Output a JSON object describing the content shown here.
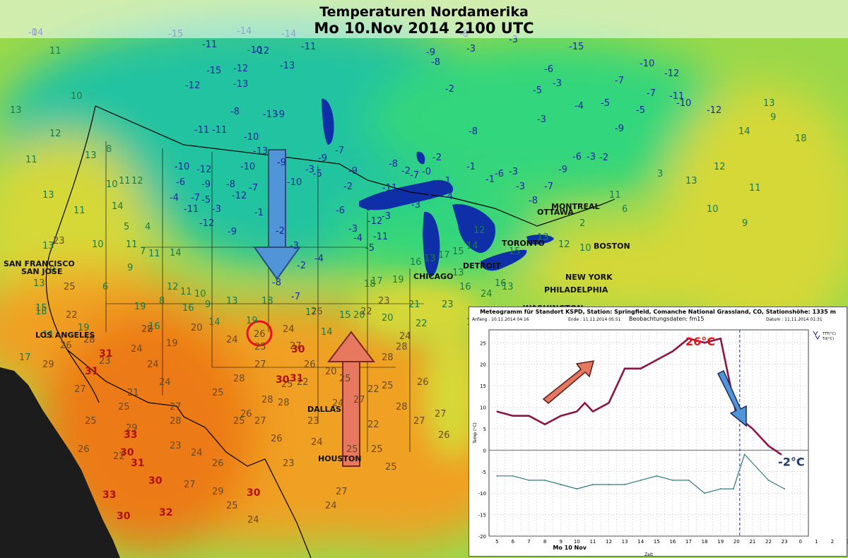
{
  "title": {
    "line1": "Temperaturen Nordamerika",
    "line2": "Mo 10.Nov 2014 2100 UTC"
  },
  "colors": {
    "cold_dark": "#22c3a0",
    "cold_mid": "#33d67c",
    "mild": "#9ad84a",
    "cool_yellow": "#d6d838",
    "warm": "#f0a020",
    "hot": "#ec7a18",
    "ocean": "#1c1c1c",
    "lake": "#0f2fa8",
    "arrow_cold": "#4f95d8",
    "arrow_warm": "#e67860",
    "series_temp": "#8b1444",
    "series_dew": "#2e7d7d"
  },
  "cities": [
    {
      "id": "san-francisco",
      "label": "SAN FRANCISCO"
    },
    {
      "id": "san-jose",
      "label": "SAN JOSE"
    },
    {
      "id": "los-angeles",
      "label": "LOS ANGELES"
    },
    {
      "id": "chicago",
      "label": "CHICAGO"
    },
    {
      "id": "detroit",
      "label": "DETROIT"
    },
    {
      "id": "toronto",
      "label": "TORONTO"
    },
    {
      "id": "montreal",
      "label": "MONTREAL"
    },
    {
      "id": "ottawa",
      "label": "OTTAWA"
    },
    {
      "id": "boston",
      "label": "BOSTON"
    },
    {
      "id": "new-york",
      "label": "NEW YORK"
    },
    {
      "id": "philadelphia",
      "label": "PHILADELPHIA"
    },
    {
      "id": "washington",
      "label": "WASHINGTON"
    },
    {
      "id": "dallas",
      "label": "DALLAS"
    },
    {
      "id": "houston",
      "label": "HOUSTON"
    }
  ],
  "temps_blue": [
    "-14",
    "-15",
    "-14",
    "-14",
    "-12",
    "-13",
    "-11",
    "-15",
    "-12",
    "-13",
    "-10",
    "-11",
    "-12",
    "-13",
    "-8",
    "-9",
    "-10",
    "-13",
    "-11",
    "-11",
    "-12",
    "-11",
    "-12",
    "-9",
    "-10",
    "-12",
    "-7",
    "-8",
    "-9",
    "-10",
    "-6",
    "-4",
    "-7",
    "-5",
    "-3",
    "-1",
    "-2",
    "-3",
    "-2",
    "-4",
    "-7",
    "-8",
    "-9",
    "-10",
    "-5",
    "-9",
    "-7",
    "-3",
    "-9",
    "-6",
    "-2",
    "-5",
    "-8",
    "-11",
    "-12",
    "-11",
    "-3",
    "-4",
    "-5",
    "-3",
    "-2",
    "-0",
    "-2",
    "-3",
    "-1",
    "-7",
    "-5",
    "-3",
    "-4",
    "-1",
    "-1",
    "-3",
    "-8",
    "-7",
    "-9",
    "-6",
    "-3",
    "-2",
    "-3",
    "-6",
    "-8",
    "-5",
    "-3",
    "-3",
    "-4",
    "-5",
    "-7",
    "-10",
    "-12",
    "-11",
    "-5",
    "-9",
    "-7",
    "-10",
    "-12",
    "-15",
    "-6",
    "-3",
    "-3",
    "-8",
    "-9",
    "-8",
    "-2",
    "-0",
    "-1"
  ],
  "temps_green": [
    "11",
    "13",
    "10",
    "8",
    "13",
    "12",
    "11",
    "13",
    "10",
    "11",
    "12",
    "14",
    "11",
    "10",
    "11",
    "13",
    "9",
    "9",
    "7",
    "6",
    "8",
    "14",
    "11",
    "12",
    "11",
    "10",
    "9",
    "4",
    "5",
    "13",
    "11",
    "17",
    "18",
    "19",
    "15",
    "19",
    "16",
    "14",
    "13",
    "16",
    "17",
    "18",
    "19",
    "14",
    "17",
    "15",
    "18",
    "20",
    "19",
    "20",
    "22",
    "21",
    "17",
    "23",
    "24",
    "16",
    "16",
    "13",
    "17",
    "15",
    "14",
    "16",
    "13",
    "13",
    "12",
    "15",
    "13",
    "12",
    "10",
    "11",
    "6",
    "2",
    "3",
    "13",
    "12",
    "14",
    "13",
    "9",
    "18",
    "11",
    "10",
    "9"
  ],
  "temps_orange": [
    "22",
    "20",
    "19",
    "23",
    "25",
    "22",
    "26",
    "28",
    "29",
    "27",
    "24",
    "24",
    "24",
    "23",
    "21",
    "25",
    "29",
    "28",
    "27",
    "25",
    "26",
    "22",
    "23",
    "24",
    "26",
    "27",
    "29",
    "25",
    "24",
    "28",
    "27",
    "25",
    "28",
    "28",
    "26",
    "25",
    "25",
    "27",
    "26",
    "23",
    "24",
    "22",
    "25",
    "27",
    "24",
    "25",
    "22",
    "25",
    "28",
    "27",
    "26",
    "27",
    "26",
    "24",
    "23",
    "22",
    "25",
    "25",
    "24",
    "25",
    "27",
    "24",
    "20",
    "23",
    "22",
    "26",
    "27",
    "28",
    "28",
    "24",
    "26",
    "28"
  ],
  "temps_red": [
    "31",
    "31",
    "33",
    "30",
    "31",
    "33",
    "30",
    "32",
    "30",
    "30",
    "31",
    "30",
    "30"
  ],
  "highlight_value": "26",
  "meteogram": {
    "header": "Meteogramm für Standort KSPD, Station: Springfield, Comanche National Grassland, CO, Stationshöhe: 1335 m",
    "anfang": "Anfang : 10.11.2014 04:16",
    "ende": "Ende : 11.11.2014 05:51",
    "beobachtung": "Beobachtungsdaten: fm15",
    "datum": "Datum : 11.11.2014 01:31",
    "ylabel": "Temp (°C)",
    "xlabel": "Zeit",
    "date_label": "Mo 10 Nov",
    "legend_temp": "TTT(°C)",
    "legend_dew": "Td(°C)",
    "annotation_high": "26°C",
    "annotation_low": "-2°C"
  },
  "chart_data": {
    "type": "line",
    "title": "",
    "xlabel": "Zeit",
    "ylabel": "Temp (°C)",
    "ylim": [
      -20,
      28
    ],
    "categories": [
      "5",
      "6",
      "7",
      "8",
      "9",
      "10",
      "11",
      "12",
      "13",
      "14",
      "15",
      "16",
      "17",
      "18",
      "19",
      "20",
      "21",
      "22",
      "23",
      "0",
      "1",
      "2",
      "3",
      "4",
      "5"
    ],
    "yticks": [
      "25",
      "20",
      "15",
      "10",
      "5",
      "0",
      "-5",
      "-10",
      "-15",
      "-20"
    ],
    "series": [
      {
        "name": "TTT(°C)",
        "points": [
          [
            5,
            9
          ],
          [
            6,
            8
          ],
          [
            7,
            8
          ],
          [
            8,
            6
          ],
          [
            9,
            8
          ],
          [
            10,
            9
          ],
          [
            10.5,
            11
          ],
          [
            11,
            9
          ],
          [
            12,
            11
          ],
          [
            13,
            19
          ],
          [
            14,
            19
          ],
          [
            15,
            21
          ],
          [
            16,
            23
          ],
          [
            17,
            26
          ],
          [
            18,
            25
          ],
          [
            19,
            26
          ],
          [
            20,
            8
          ],
          [
            21,
            5
          ],
          [
            22,
            1
          ],
          [
            22.8,
            -1
          ]
        ]
      },
      {
        "name": "Td(°C)",
        "points": [
          [
            5,
            -6
          ],
          [
            6,
            -6
          ],
          [
            7,
            -7
          ],
          [
            8,
            -7
          ],
          [
            9,
            -8
          ],
          [
            10,
            -9
          ],
          [
            11,
            -8
          ],
          [
            12,
            -8
          ],
          [
            13,
            -8
          ],
          [
            14,
            -7
          ],
          [
            15,
            -6
          ],
          [
            16,
            -7
          ],
          [
            17,
            -7
          ],
          [
            18,
            -10
          ],
          [
            19,
            -9
          ],
          [
            19.8,
            -9
          ],
          [
            20.5,
            -1
          ],
          [
            22,
            -7
          ],
          [
            23,
            -9
          ]
        ]
      }
    ]
  }
}
